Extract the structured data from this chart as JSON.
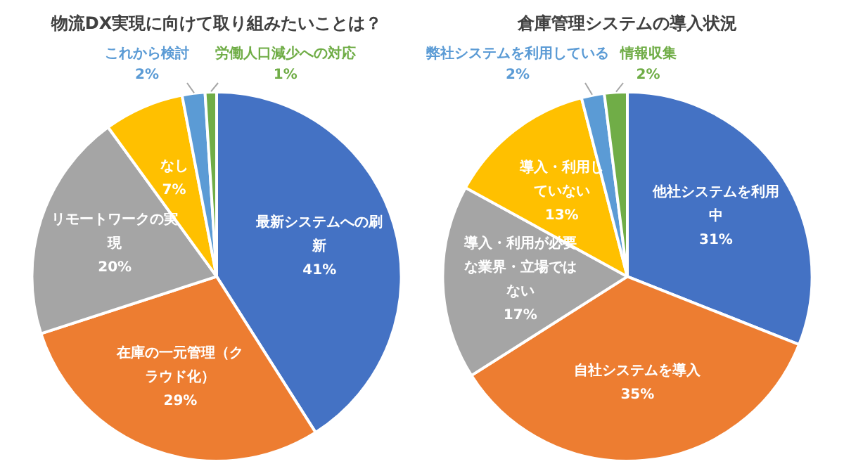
{
  "chart_data": [
    {
      "type": "pie",
      "title": "物流DX実現に向けて取り組みたいことは？",
      "categories": [
        "最新システムへの刷新",
        "在庫の一元管理（クラウド化）",
        "リモートワークの実現",
        "なし",
        "これから検討",
        "労働人口減少への対応"
      ],
      "values": [
        41,
        29,
        20,
        7,
        2,
        1
      ],
      "value_labels": [
        "41%",
        "29%",
        "20%",
        "7%",
        "2%",
        "1%"
      ],
      "colors": [
        "#4472c4",
        "#ed7d31",
        "#a5a5a5",
        "#ffc000",
        "#5b9bd5",
        "#70ad47"
      ],
      "legend": false
    },
    {
      "type": "pie",
      "title": "倉庫管理システムの導入状況",
      "categories": [
        "他社システムを利用中",
        "自社システムを導入",
        "導入・利用が必要な業界・立場ではない",
        "導入・利用していない",
        "弊社システムを利用している",
        "情報収集"
      ],
      "values": [
        31,
        35,
        17,
        13,
        2,
        2
      ],
      "value_labels": [
        "31%",
        "35%",
        "17%",
        "13%",
        "2%",
        "2%"
      ],
      "colors": [
        "#4472c4",
        "#ed7d31",
        "#a5a5a5",
        "#ffc000",
        "#5b9bd5",
        "#70ad47"
      ],
      "legend": false
    }
  ]
}
